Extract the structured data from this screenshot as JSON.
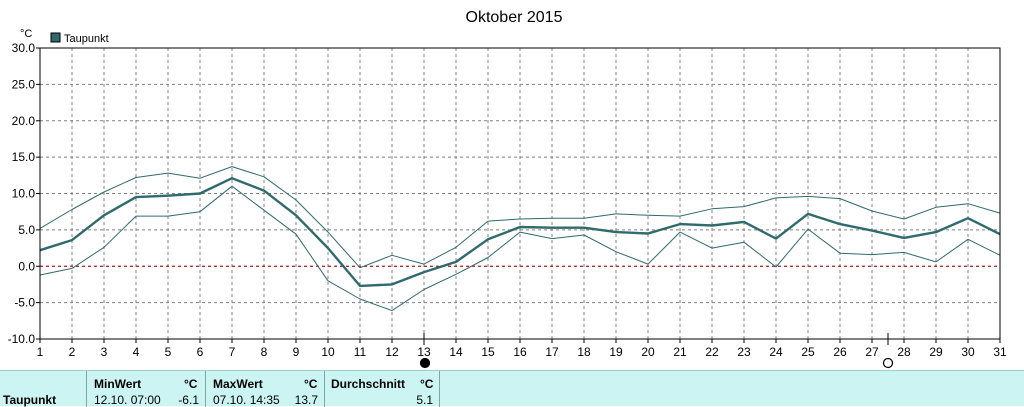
{
  "colors": {
    "series": "#2f6a6c",
    "band": "#2f6a6c",
    "zero_line": "#c00000",
    "grid": "#808080",
    "summary_bg": "#ccf4f2"
  },
  "chart_data": {
    "type": "line",
    "title": "Oktober 2015",
    "ylabel": "°C",
    "xlabel": "",
    "ylim": [
      -10,
      30
    ],
    "xlim": [
      1,
      31
    ],
    "y_ticks": [
      "30.0",
      "25.0",
      "20.0",
      "15.0",
      "10.0",
      "5.0",
      "0.0",
      "-5.0",
      "-10.0"
    ],
    "x_ticks": [
      "1",
      "2",
      "3",
      "4",
      "5",
      "6",
      "7",
      "8",
      "9",
      "10",
      "11",
      "12",
      "13",
      "14",
      "15",
      "16",
      "17",
      "18",
      "19",
      "20",
      "21",
      "22",
      "23",
      "24",
      "25",
      "26",
      "27",
      "28",
      "29",
      "30",
      "31"
    ],
    "grid": true,
    "legend": {
      "placement": "top-left",
      "entries": [
        "Taupunkt"
      ]
    },
    "zero_reference_line": true,
    "moon_markers": [
      {
        "day": 13,
        "icon": "new-moon-icon"
      },
      {
        "day": 27.5,
        "icon": "full-moon-icon"
      }
    ],
    "x": [
      1,
      2,
      3,
      4,
      5,
      6,
      7,
      8,
      9,
      10,
      11,
      12,
      13,
      14,
      15,
      16,
      17,
      18,
      19,
      20,
      21,
      22,
      23,
      24,
      25,
      26,
      27,
      28,
      29,
      30,
      31
    ],
    "series": [
      {
        "name": "Taupunkt",
        "values": [
          2.2,
          3.6,
          7.0,
          9.5,
          9.7,
          10.0,
          12.1,
          10.4,
          7.0,
          2.5,
          -2.7,
          -2.5,
          -0.8,
          0.6,
          3.7,
          5.4,
          5.3,
          5.3,
          4.7,
          4.5,
          5.8,
          5.6,
          6.1,
          3.8,
          7.2,
          5.8,
          4.9,
          3.9,
          4.7,
          6.6,
          4.4
        ]
      },
      {
        "name": "",
        "values": [
          5.2,
          7.8,
          10.2,
          12.2,
          12.8,
          12.1,
          13.7,
          12.3,
          9.1,
          4.7,
          -0.2,
          1.5,
          0.3,
          2.6,
          6.2,
          6.5,
          6.6,
          6.6,
          7.2,
          7.0,
          6.9,
          7.9,
          8.2,
          9.4,
          9.6,
          9.3,
          7.6,
          6.5,
          8.1,
          8.6,
          7.3
        ]
      },
      {
        "name": "",
        "values": [
          -1.2,
          -0.3,
          2.6,
          6.9,
          6.9,
          7.5,
          11.0,
          7.7,
          4.4,
          -2.0,
          -4.5,
          -6.1,
          -3.2,
          -1.1,
          1.2,
          4.7,
          3.8,
          4.3,
          2.0,
          0.3,
          4.7,
          2.5,
          3.3,
          -0.1,
          5.1,
          1.8,
          1.6,
          1.9,
          0.6,
          3.7,
          1.5
        ]
      }
    ]
  },
  "summary": {
    "row_label": "Taupunkt",
    "min_label": "MinWert",
    "min_unit": "°C",
    "min_time": "12.10.  07:00",
    "min_value": "-6.1",
    "max_label": "MaxWert",
    "max_unit": "°C",
    "max_time": "07.10.  14:35",
    "max_value": "13.7",
    "avg_label": "Durchschnitt",
    "avg_unit": "°C",
    "avg_value": "5.1"
  }
}
